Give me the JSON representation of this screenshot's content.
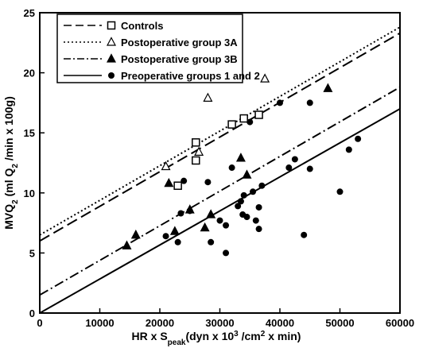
{
  "chart_data": {
    "type": "scatter",
    "xlabel": "HR x S_peak (dyn x 10^3/cm^2 x min)",
    "ylabel": "MVQ2 (ml Q2/min x 100g)",
    "xlim": [
      0,
      60000
    ],
    "ylim": [
      0,
      25
    ],
    "x_ticks": [
      "0",
      "10000",
      "20000",
      "30000",
      "40000",
      "50000",
      "60000"
    ],
    "y_ticks": [
      "0",
      "5",
      "10",
      "15",
      "20",
      "25"
    ],
    "legend_position": "top-left",
    "series": [
      {
        "name": "Controls",
        "marker": "open-square",
        "line_style": "long-dash",
        "line": {
          "x1": 0,
          "y1": 6.0,
          "x2": 60000,
          "y2": 23.3
        },
        "points": [
          [
            23000,
            10.6
          ],
          [
            26000,
            12.7
          ],
          [
            26000,
            14.2
          ],
          [
            32000,
            15.7
          ],
          [
            34000,
            16.2
          ],
          [
            36500,
            16.5
          ]
        ]
      },
      {
        "name": "Postoperative group 3A",
        "marker": "open-triangle",
        "line_style": "dotted",
        "line": {
          "x1": 0,
          "y1": 6.5,
          "x2": 60000,
          "y2": 23.8
        },
        "points": [
          [
            21000,
            12.2
          ],
          [
            26500,
            13.4
          ],
          [
            28000,
            17.9
          ],
          [
            37500,
            19.5
          ]
        ]
      },
      {
        "name": "Postoperative group 3B",
        "marker": "filled-triangle",
        "line_style": "dash-dot",
        "line": {
          "x1": 0,
          "y1": 1.5,
          "x2": 60000,
          "y2": 18.8
        },
        "points": [
          [
            14500,
            5.6
          ],
          [
            16000,
            6.5
          ],
          [
            21500,
            10.8
          ],
          [
            22500,
            6.8
          ],
          [
            25000,
            8.6
          ],
          [
            27500,
            7.1
          ],
          [
            28500,
            8.2
          ],
          [
            33500,
            12.9
          ],
          [
            34500,
            11.5
          ],
          [
            48000,
            18.7
          ]
        ]
      },
      {
        "name": "Preoperative groups 1 and 2",
        "marker": "filled-circle",
        "line_style": "solid",
        "line": {
          "x1": 0,
          "y1": 0.0,
          "x2": 60000,
          "y2": 17.0
        },
        "points": [
          [
            21000,
            6.4
          ],
          [
            23000,
            5.9
          ],
          [
            23500,
            8.3
          ],
          [
            24000,
            11.0
          ],
          [
            25000,
            8.5
          ],
          [
            28000,
            10.9
          ],
          [
            28500,
            5.9
          ],
          [
            30000,
            7.7
          ],
          [
            31000,
            7.3
          ],
          [
            31000,
            5.0
          ],
          [
            32000,
            12.1
          ],
          [
            33000,
            8.9
          ],
          [
            33500,
            9.3
          ],
          [
            33800,
            8.2
          ],
          [
            34000,
            9.8
          ],
          [
            34500,
            8.0
          ],
          [
            35000,
            15.9
          ],
          [
            35500,
            10.1
          ],
          [
            36000,
            7.7
          ],
          [
            36500,
            8.8
          ],
          [
            36500,
            7.0
          ],
          [
            37000,
            10.6
          ],
          [
            40000,
            17.5
          ],
          [
            41500,
            12.1
          ],
          [
            42500,
            12.8
          ],
          [
            44000,
            6.5
          ],
          [
            45000,
            17.5
          ],
          [
            45000,
            12.0
          ],
          [
            50000,
            10.1
          ],
          [
            51500,
            13.6
          ],
          [
            53000,
            14.5
          ]
        ]
      }
    ]
  }
}
